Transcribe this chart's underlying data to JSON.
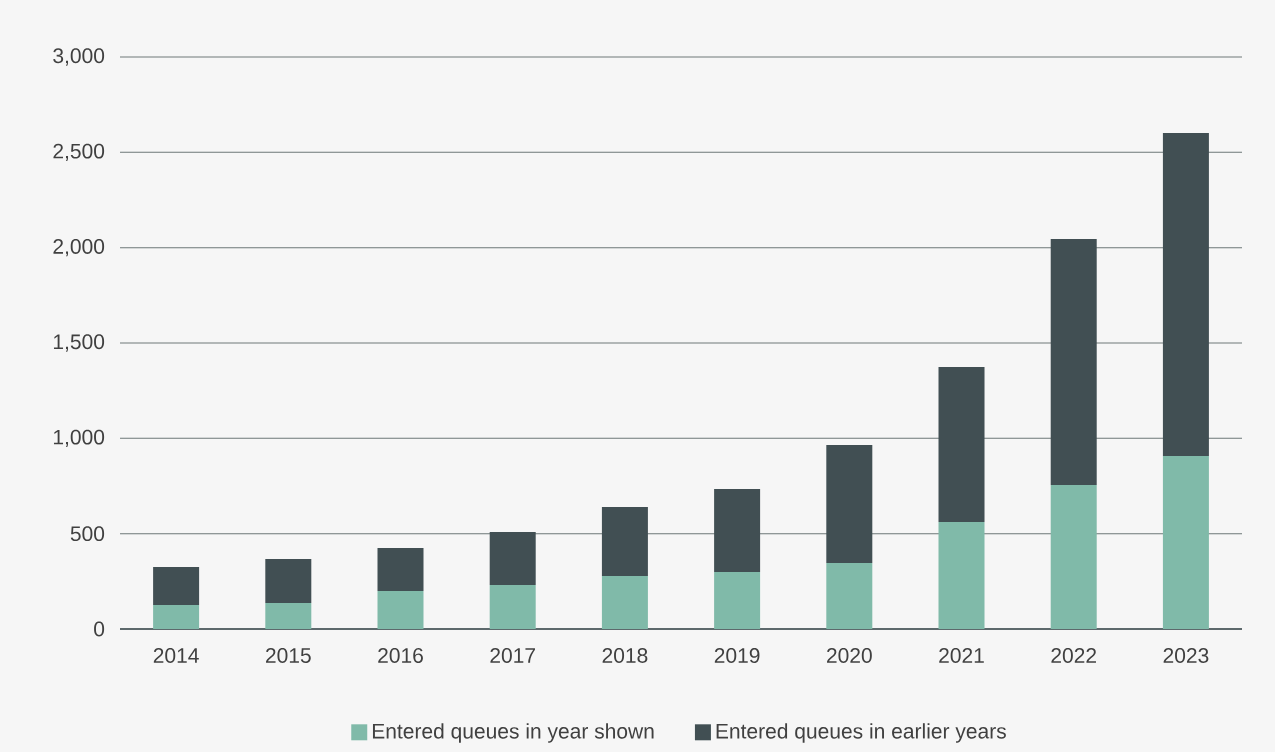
{
  "chart_data": {
    "type": "bar",
    "stacked": true,
    "categories": [
      "2014",
      "2015",
      "2016",
      "2017",
      "2018",
      "2019",
      "2020",
      "2021",
      "2022",
      "2023"
    ],
    "series": [
      {
        "name": "Entered queues in year shown",
        "color": "#80baa9",
        "values": [
          126,
          136,
          199,
          231,
          278,
          299,
          346,
          561,
          755,
          907
        ]
      },
      {
        "name": "Entered queues in earlier years",
        "color": "#414f53",
        "values": [
          199,
          231,
          226,
          278,
          362,
          435,
          619,
          813,
          1291,
          1695
        ]
      }
    ],
    "ylim": [
      0,
      3000
    ],
    "yticks": [
      0,
      500,
      {
        "value": 1000,
        "label": "1,000"
      },
      {
        "value": 1500,
        "label": "1,500"
      },
      {
        "value": 2000,
        "label": "2,000"
      },
      {
        "value": 2500,
        "label": "2,500"
      },
      {
        "value": 3000,
        "label": "3,000"
      }
    ],
    "grid": "y",
    "legend": "bottom"
  }
}
